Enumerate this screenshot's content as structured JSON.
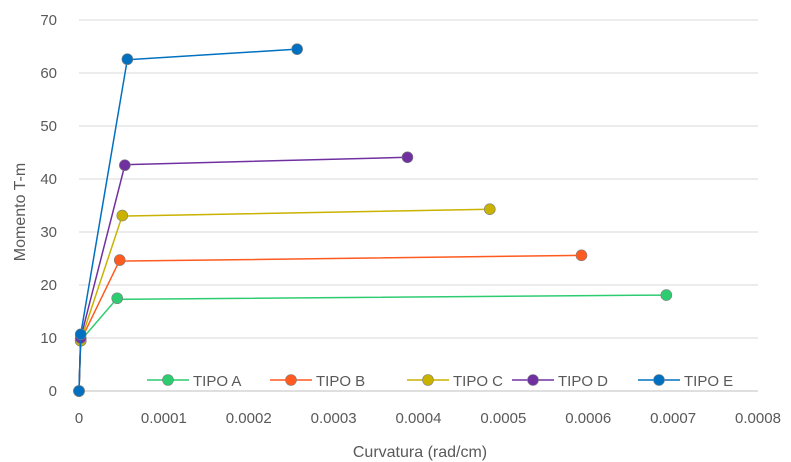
{
  "chart_data": {
    "type": "line",
    "xlabel": "Curvatura (rad/cm)",
    "ylabel": "Momento T-m",
    "xlim": [
      0,
      0.0008
    ],
    "ylim": [
      0,
      70
    ],
    "x_ticks": [
      0,
      0.0001,
      0.0002,
      0.0003,
      0.0004,
      0.0005,
      0.0006,
      0.0007,
      0.0008
    ],
    "x_tick_labels": [
      "0",
      "0.0001",
      "0.0002",
      "0.0003",
      "0.0004",
      "0.0005",
      "0.0006",
      "0.0007",
      "0.0008"
    ],
    "y_ticks": [
      0,
      10,
      20,
      30,
      40,
      50,
      60,
      70
    ],
    "y_tick_labels": [
      "0",
      "10",
      "20",
      "30",
      "40",
      "50",
      "60",
      "70"
    ],
    "grid": "horizontal",
    "legend_position": "bottom-right",
    "series": [
      {
        "name": "TIPO A",
        "color": "#2ECC71",
        "x": [
          0,
          2e-06,
          4.5e-05,
          4.5e-05,
          0.000692
        ],
        "y": [
          0,
          9.5,
          17.5,
          17.3,
          18.1
        ]
      },
      {
        "name": "TIPO B",
        "color": "#FF5A1F",
        "x": [
          0,
          2e-06,
          4.8e-05,
          4.8e-05,
          0.000592
        ],
        "y": [
          0,
          9.5,
          24.7,
          24.5,
          25.6
        ]
      },
      {
        "name": "TIPO C",
        "color": "#C9B200",
        "x": [
          0,
          2e-06,
          5.1e-05,
          5.1e-05,
          0.000484
        ],
        "y": [
          0,
          9.5,
          33.1,
          33.0,
          34.3
        ]
      },
      {
        "name": "TIPO D",
        "color": "#7030A0",
        "x": [
          0,
          2e-06,
          5.4e-05,
          5.4e-05,
          0.000387
        ],
        "y": [
          0,
          10.0,
          42.6,
          42.7,
          44.1
        ]
      },
      {
        "name": "TIPO E",
        "color": "#0070C0",
        "x": [
          0,
          2e-06,
          5.7e-05,
          5.7e-05,
          0.000257
        ],
        "y": [
          0,
          10.7,
          62.6,
          62.5,
          64.5
        ]
      }
    ]
  }
}
